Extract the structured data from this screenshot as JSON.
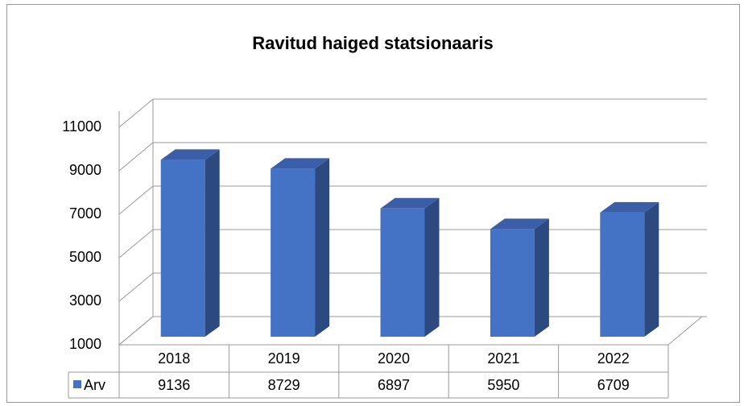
{
  "chart_data": {
    "type": "bar3d",
    "title": "Ravitud haiged statsionaaris",
    "categories": [
      "2018",
      "2019",
      "2020",
      "2021",
      "2022"
    ],
    "series": [
      {
        "name": "Arv",
        "color": "#4472c4",
        "values": [
          9136,
          8729,
          6897,
          5950,
          6709
        ]
      }
    ],
    "ylim": [
      1000,
      11000
    ],
    "yticks": [
      1000,
      3000,
      5000,
      7000,
      9000,
      11000
    ],
    "grid": true,
    "legend": "table"
  }
}
